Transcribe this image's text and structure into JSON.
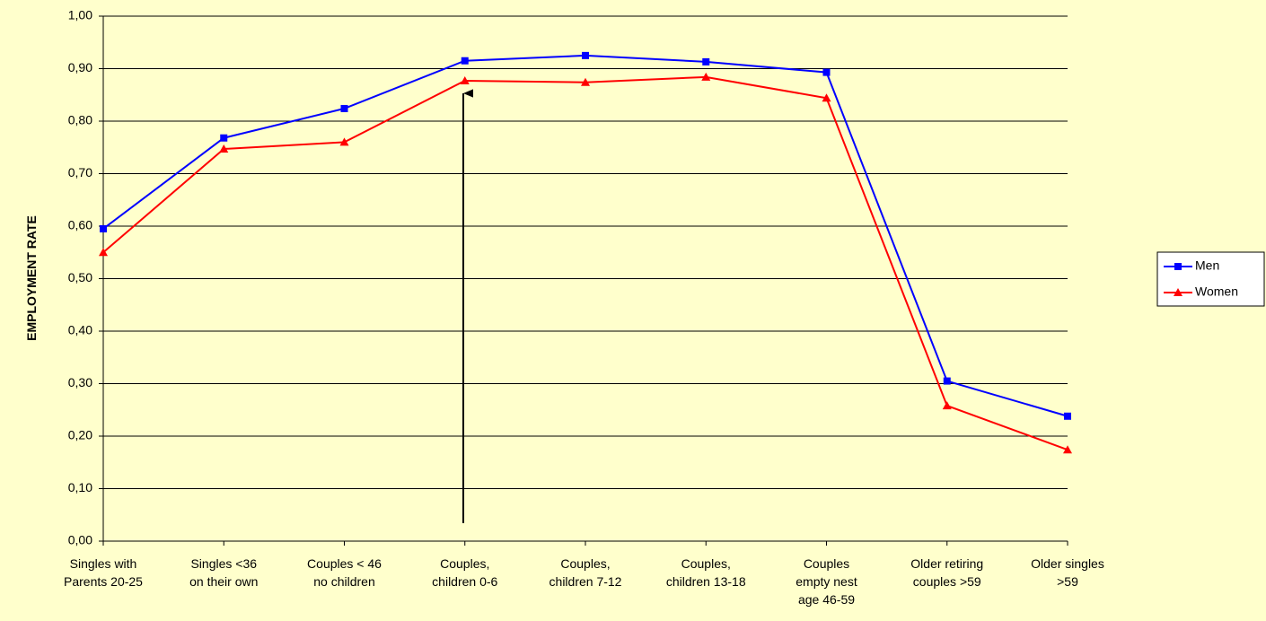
{
  "chart_data": {
    "type": "line",
    "y_label": "EMPLOYMENT RATE",
    "categories": [
      [
        "Singles with",
        "Parents 20-25"
      ],
      [
        "Singles  <36",
        "on their own"
      ],
      [
        "Couples < 46",
        "no children"
      ],
      [
        "Couples,",
        "children 0-6"
      ],
      [
        "Couples,",
        "children 7-12"
      ],
      [
        "Couples,",
        "children 13-18"
      ],
      [
        "Couples",
        "empty nest",
        "age 46-59"
      ],
      [
        "Older retiring",
        "couples >59"
      ],
      [
        "Older singles",
        ">59"
      ]
    ],
    "series": [
      {
        "name": "Men",
        "color": "#0000ff",
        "marker": "square",
        "values": [
          0.595,
          0.768,
          0.824,
          0.915,
          0.925,
          0.913,
          0.893,
          0.305,
          0.238
        ]
      },
      {
        "name": "Women",
        "color": "#ff0000",
        "marker": "triangle",
        "values": [
          0.55,
          0.747,
          0.76,
          0.877,
          0.874,
          0.884,
          0.844,
          0.258,
          0.174
        ]
      }
    ],
    "ylim": [
      0,
      1
    ],
    "yticks": [
      {
        "value": 0,
        "label": "0,00"
      },
      {
        "value": 0.1,
        "label": "0,10"
      },
      {
        "value": 0.2,
        "label": "0,20"
      },
      {
        "value": 0.3,
        "label": "0,30"
      },
      {
        "value": 0.4,
        "label": "0,40"
      },
      {
        "value": 0.5,
        "label": "0,50"
      },
      {
        "value": 0.6,
        "label": "0,60"
      },
      {
        "value": 0.7,
        "label": "0,70"
      },
      {
        "value": 0.8,
        "label": "0,80"
      },
      {
        "value": 0.9,
        "label": "0,90"
      },
      {
        "value": 1,
        "label": "1,00"
      }
    ],
    "grid": true,
    "legend": "right"
  }
}
